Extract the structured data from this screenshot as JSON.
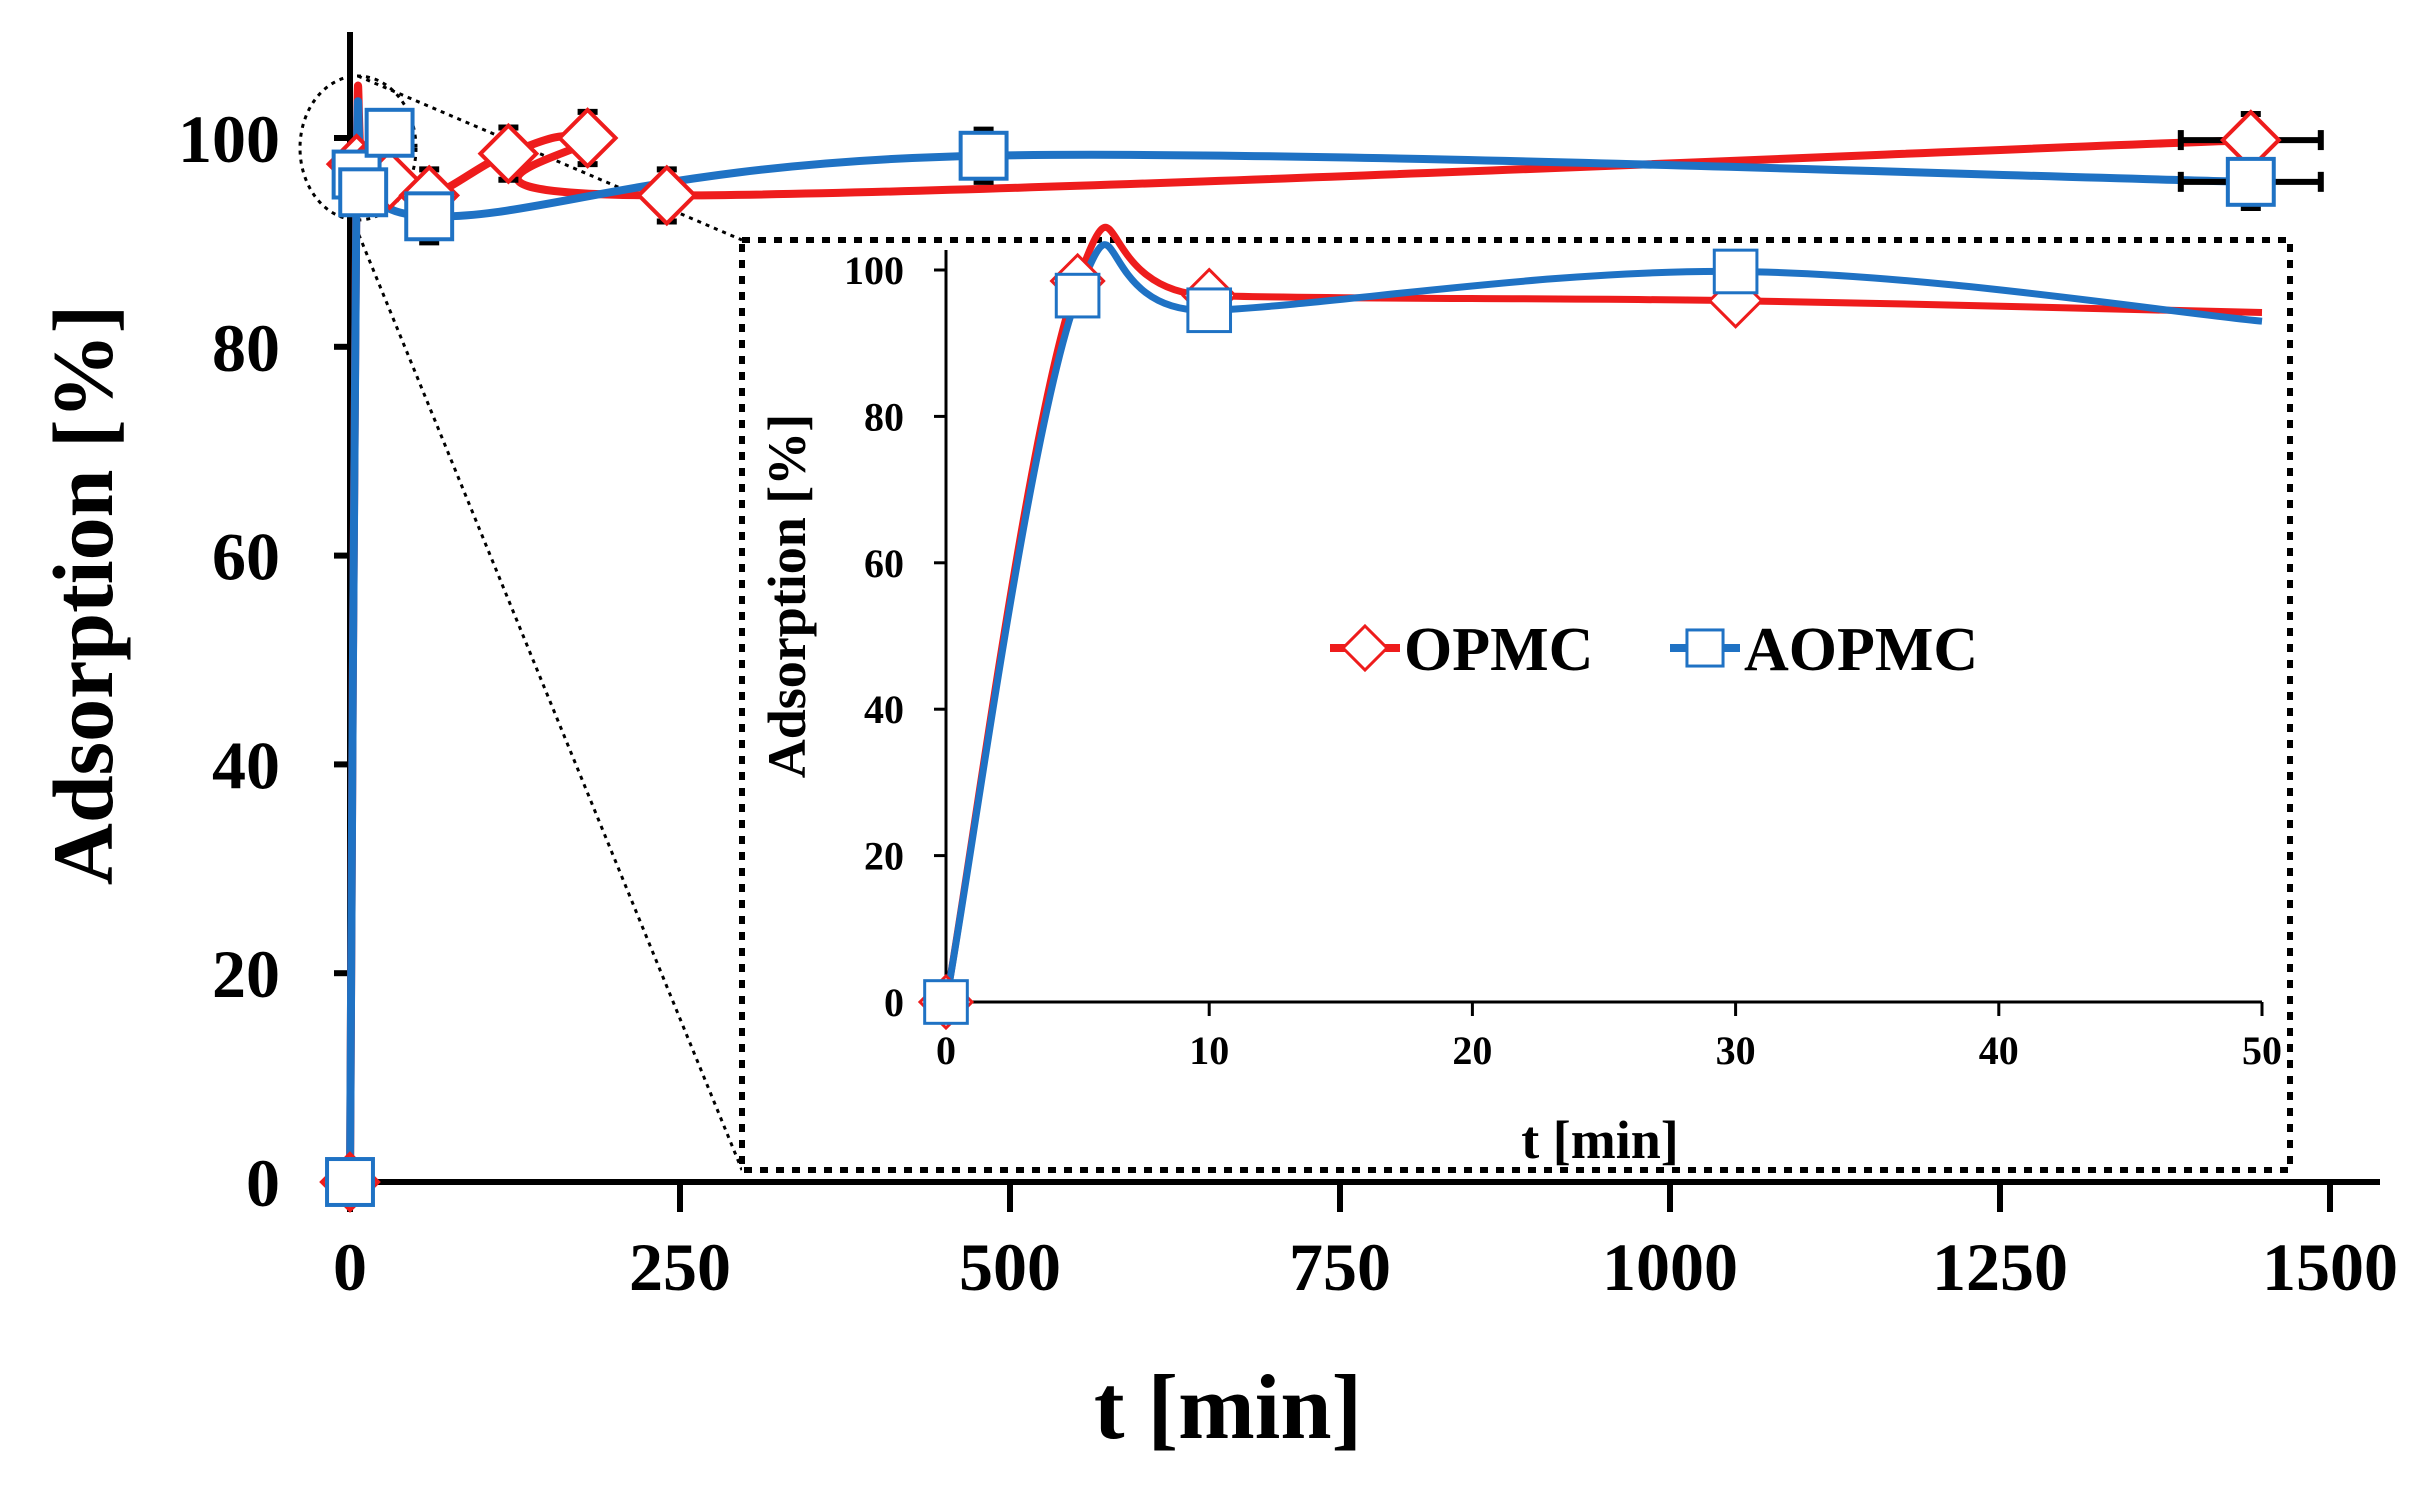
{
  "colors": {
    "opmc": "#ee1c1c",
    "aopmc": "#1f72c4",
    "axis": "#000000"
  },
  "chart_data": [
    {
      "id": "main",
      "type": "line",
      "xlabel": "t [min]",
      "ylabel": "Adsorption [%]",
      "xlim": [
        0,
        1500
      ],
      "ylim": [
        0,
        100
      ],
      "x_ticks": [
        0,
        250,
        500,
        750,
        1000,
        1250,
        1500
      ],
      "y_ticks": [
        0,
        20,
        40,
        60,
        80,
        100
      ],
      "series": [
        {
          "name": "OPMC",
          "marker": "diamond",
          "x": [
            0,
            5,
            10,
            30,
            60,
            120,
            180,
            240,
            1440
          ],
          "y": [
            0,
            97.5,
            96.5,
            96,
            94.5,
            98.5,
            100,
            94.5,
            99.8
          ],
          "err": [
            0,
            0,
            0,
            0,
            2.5,
            2.5,
            2.5,
            2.5,
            2.5
          ]
        },
        {
          "name": "AOPMC",
          "marker": "square",
          "x": [
            0,
            5,
            10,
            30,
            60,
            480,
            1440
          ],
          "y": [
            0,
            96.5,
            94.8,
            100.5,
            92.5,
            98.3,
            95.8
          ],
          "err": [
            0,
            0,
            0,
            0,
            2.5,
            2.5,
            2.5
          ]
        }
      ]
    },
    {
      "id": "inset",
      "type": "line",
      "xlabel": "t [min]",
      "ylabel": "Adsorption [%]",
      "xlim": [
        0,
        50
      ],
      "ylim": [
        0,
        100
      ],
      "x_ticks": [
        0,
        10,
        20,
        30,
        40,
        50
      ],
      "y_ticks": [
        0,
        20,
        40,
        60,
        80,
        100
      ],
      "legend": "center",
      "series": [
        {
          "name": "OPMC",
          "marker": "diamond",
          "x": [
            0,
            5,
            10,
            30,
            50
          ],
          "y": [
            0,
            98.5,
            96.5,
            95.8,
            94.2
          ],
          "markers_at": [
            0,
            5,
            10,
            30
          ]
        },
        {
          "name": "AOPMC",
          "marker": "square",
          "x": [
            0,
            5,
            10,
            30,
            50
          ],
          "y": [
            0,
            96.5,
            94.5,
            99.8,
            93
          ],
          "markers_at": [
            0,
            5,
            10,
            30
          ]
        }
      ]
    }
  ]
}
